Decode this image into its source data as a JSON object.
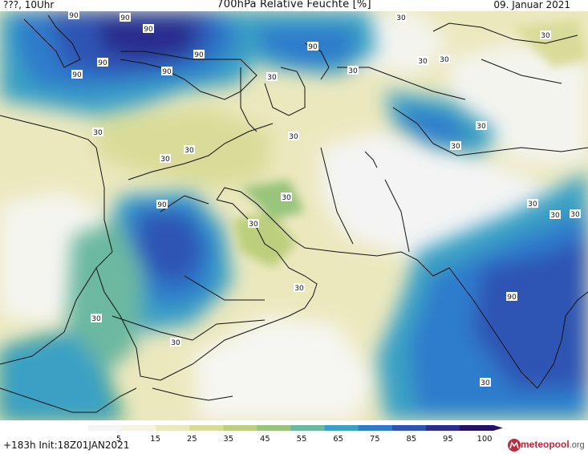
{
  "header": {
    "left_label": "???, 10Uhr",
    "title": "700hPa Relative Feuchte [%]",
    "date": "09. Januar 2021"
  },
  "footer": {
    "run_info": "+183h  Init:18Z01JAN2021",
    "brand_main": "meteopool",
    "brand_tld": ".org"
  },
  "legend": {
    "ticks": [
      "5",
      "15",
      "25",
      "35",
      "45",
      "55",
      "65",
      "75",
      "85",
      "95",
      "100"
    ],
    "colors": [
      "#f4f4f4",
      "#f6f4e0",
      "#ece8be",
      "#d9dc98",
      "#bccf7c",
      "#98c47c",
      "#6cb8a0",
      "#3aa0c4",
      "#2f7ccc",
      "#2d54b4",
      "#2b2c8c",
      "#241264"
    ]
  },
  "map": {
    "contour_labels": [
      {
        "text": "90",
        "cls": "c1"
      },
      {
        "text": "90",
        "cls": "c2"
      },
      {
        "text": "90",
        "cls": "c3"
      },
      {
        "text": "90",
        "cls": "c4"
      },
      {
        "text": "90",
        "cls": "c5"
      },
      {
        "text": "90",
        "cls": "c6"
      },
      {
        "text": "90",
        "cls": "c7"
      },
      {
        "text": "30",
        "cls": "c8"
      },
      {
        "text": "30",
        "cls": "c9"
      },
      {
        "text": "30",
        "cls": "c10"
      },
      {
        "text": "30",
        "cls": "c11"
      },
      {
        "text": "30",
        "cls": "c12"
      },
      {
        "text": "30",
        "cls": "c13"
      },
      {
        "text": "30",
        "cls": "c14"
      },
      {
        "text": "30",
        "cls": "c15"
      },
      {
        "text": "30",
        "cls": "c16"
      },
      {
        "text": "90",
        "cls": "c17"
      },
      {
        "text": "30",
        "cls": "c18"
      },
      {
        "text": "30",
        "cls": "c19"
      },
      {
        "text": "30",
        "cls": "c20"
      },
      {
        "text": "30",
        "cls": "c21"
      },
      {
        "text": "90",
        "cls": "c22"
      },
      {
        "text": "90",
        "cls": "c23"
      },
      {
        "text": "30",
        "cls": "c24"
      },
      {
        "text": "30",
        "cls": "c25"
      },
      {
        "text": "30",
        "cls": "c26"
      },
      {
        "text": "30",
        "cls": "c27"
      },
      {
        "text": "30",
        "cls": "c28"
      },
      {
        "text": "30",
        "cls": "c29"
      },
      {
        "text": "30",
        "cls": "c30"
      },
      {
        "text": "30",
        "cls": "c31"
      }
    ]
  }
}
